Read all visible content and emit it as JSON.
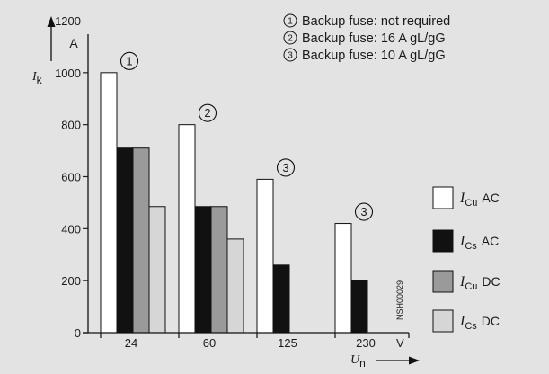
{
  "chart_data": {
    "type": "bar",
    "categories": [
      "24",
      "60",
      "125",
      "230"
    ],
    "x_unit": "V",
    "ylim": [
      0,
      1200
    ],
    "yticks": [
      0,
      200,
      400,
      600,
      800,
      1000,
      1200
    ],
    "y_unit": "A",
    "ylabel": {
      "main": "I",
      "sub": "k"
    },
    "xlabel": {
      "main": "U",
      "sub": "n"
    },
    "grid": false,
    "series": [
      {
        "legend_main": "I",
        "legend_sub": "Cu",
        "legend_suffix": "AC",
        "color": "#ffffff",
        "values": [
          1000,
          800,
          590,
          420
        ]
      },
      {
        "legend_main": "I",
        "legend_sub": "Cs",
        "legend_suffix": "AC",
        "color": "#111111",
        "values": [
          710,
          485,
          260,
          200
        ]
      },
      {
        "legend_main": "I",
        "legend_sub": "Cu",
        "legend_suffix": "DC",
        "color": "#9a9a9a",
        "values": [
          710,
          485,
          null,
          null
        ]
      },
      {
        "legend_main": "I",
        "legend_sub": "Cs",
        "legend_suffix": "DC",
        "color": "#d6d6d6",
        "values": [
          485,
          360,
          null,
          null
        ]
      }
    ],
    "group_markers": [
      "1",
      "2",
      "3",
      "3"
    ],
    "annotations": [
      {
        "marker": "1",
        "text": "Backup fuse: not required"
      },
      {
        "marker": "2",
        "text": "Backup fuse: 16 A gL/gG"
      },
      {
        "marker": "3",
        "text": "Backup fuse: 10 A gL/gG"
      }
    ],
    "legend_position": "right",
    "figure_code": "NSH00029"
  }
}
